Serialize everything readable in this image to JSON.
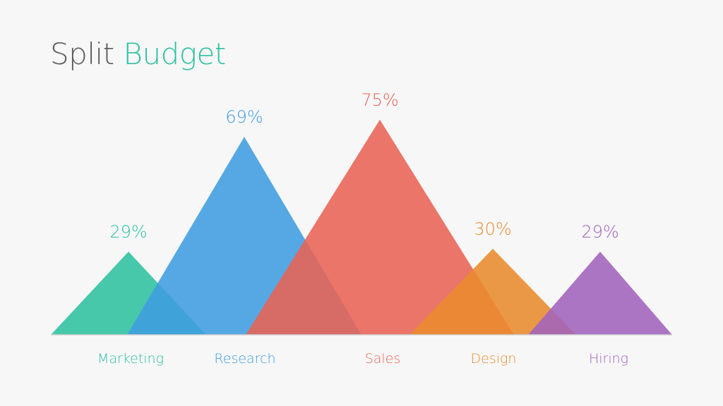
{
  "title": {
    "part1": "Split",
    "part2": "Budget"
  },
  "colors": {
    "title_dark": "#5a5a5a",
    "title_accent": "#2fc1a1",
    "baseline": "#d0d0d0"
  },
  "chart_data": {
    "type": "bar",
    "categories": [
      "Marketing",
      "Research",
      "Sales",
      "Design",
      "Hiring"
    ],
    "values": [
      29,
      69,
      75,
      30,
      29
    ],
    "value_labels": [
      "29%",
      "69%",
      "75%",
      "30%",
      "29%"
    ],
    "colors": [
      "#2fc1a1",
      "#3f9de0",
      "#e96355",
      "#e98b2e",
      "#a263bd"
    ],
    "title": "Split Budget",
    "xlabel": "",
    "ylabel": "",
    "grid": false,
    "legend": "none"
  }
}
